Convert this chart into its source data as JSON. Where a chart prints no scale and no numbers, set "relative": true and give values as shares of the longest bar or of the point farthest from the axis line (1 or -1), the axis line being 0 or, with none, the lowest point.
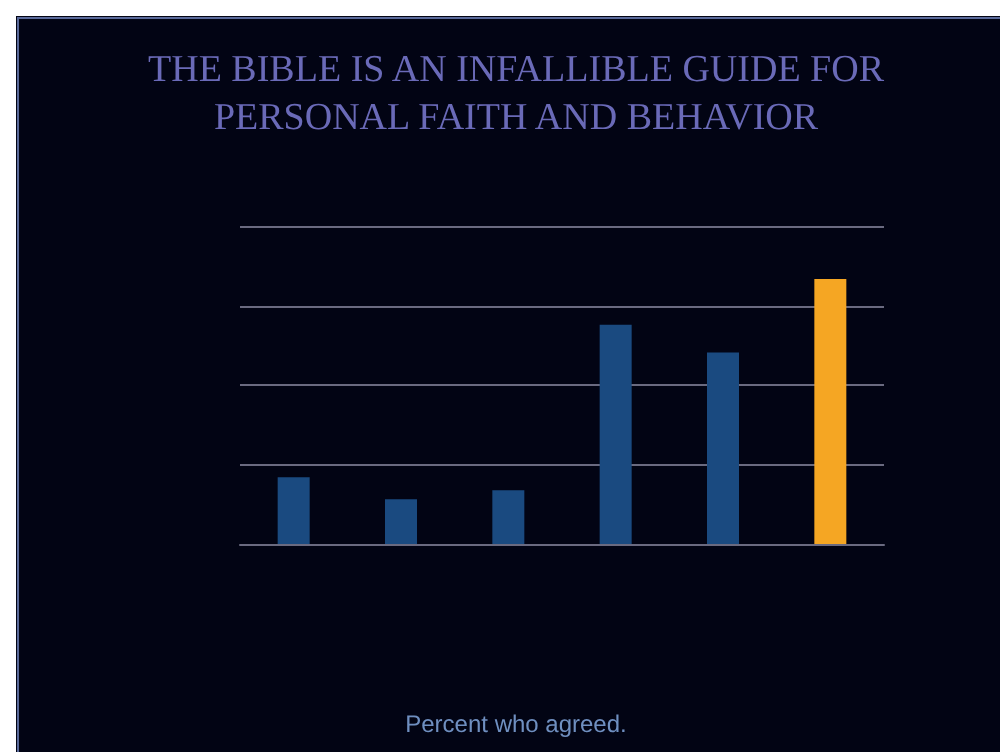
{
  "chart_data": {
    "type": "bar",
    "title": "THE BIBLE IS AN INFALLIBLE GUIDE FOR\nPERSONAL FAITH AND BEHAVIOR",
    "categories": [
      null,
      null,
      null,
      null,
      null,
      null
    ],
    "values": [
      0.252,
      0.169,
      0.203,
      0.827,
      0.723,
      1
    ],
    "colors": [
      "#1a4a80",
      "#1a4a80",
      "#1a4a80",
      "#1a4a80",
      "#1a4a80",
      "#f5a623"
    ],
    "relative": true,
    "grid": "y",
    "annotations": [
      "Percent who agreed."
    ]
  }
}
